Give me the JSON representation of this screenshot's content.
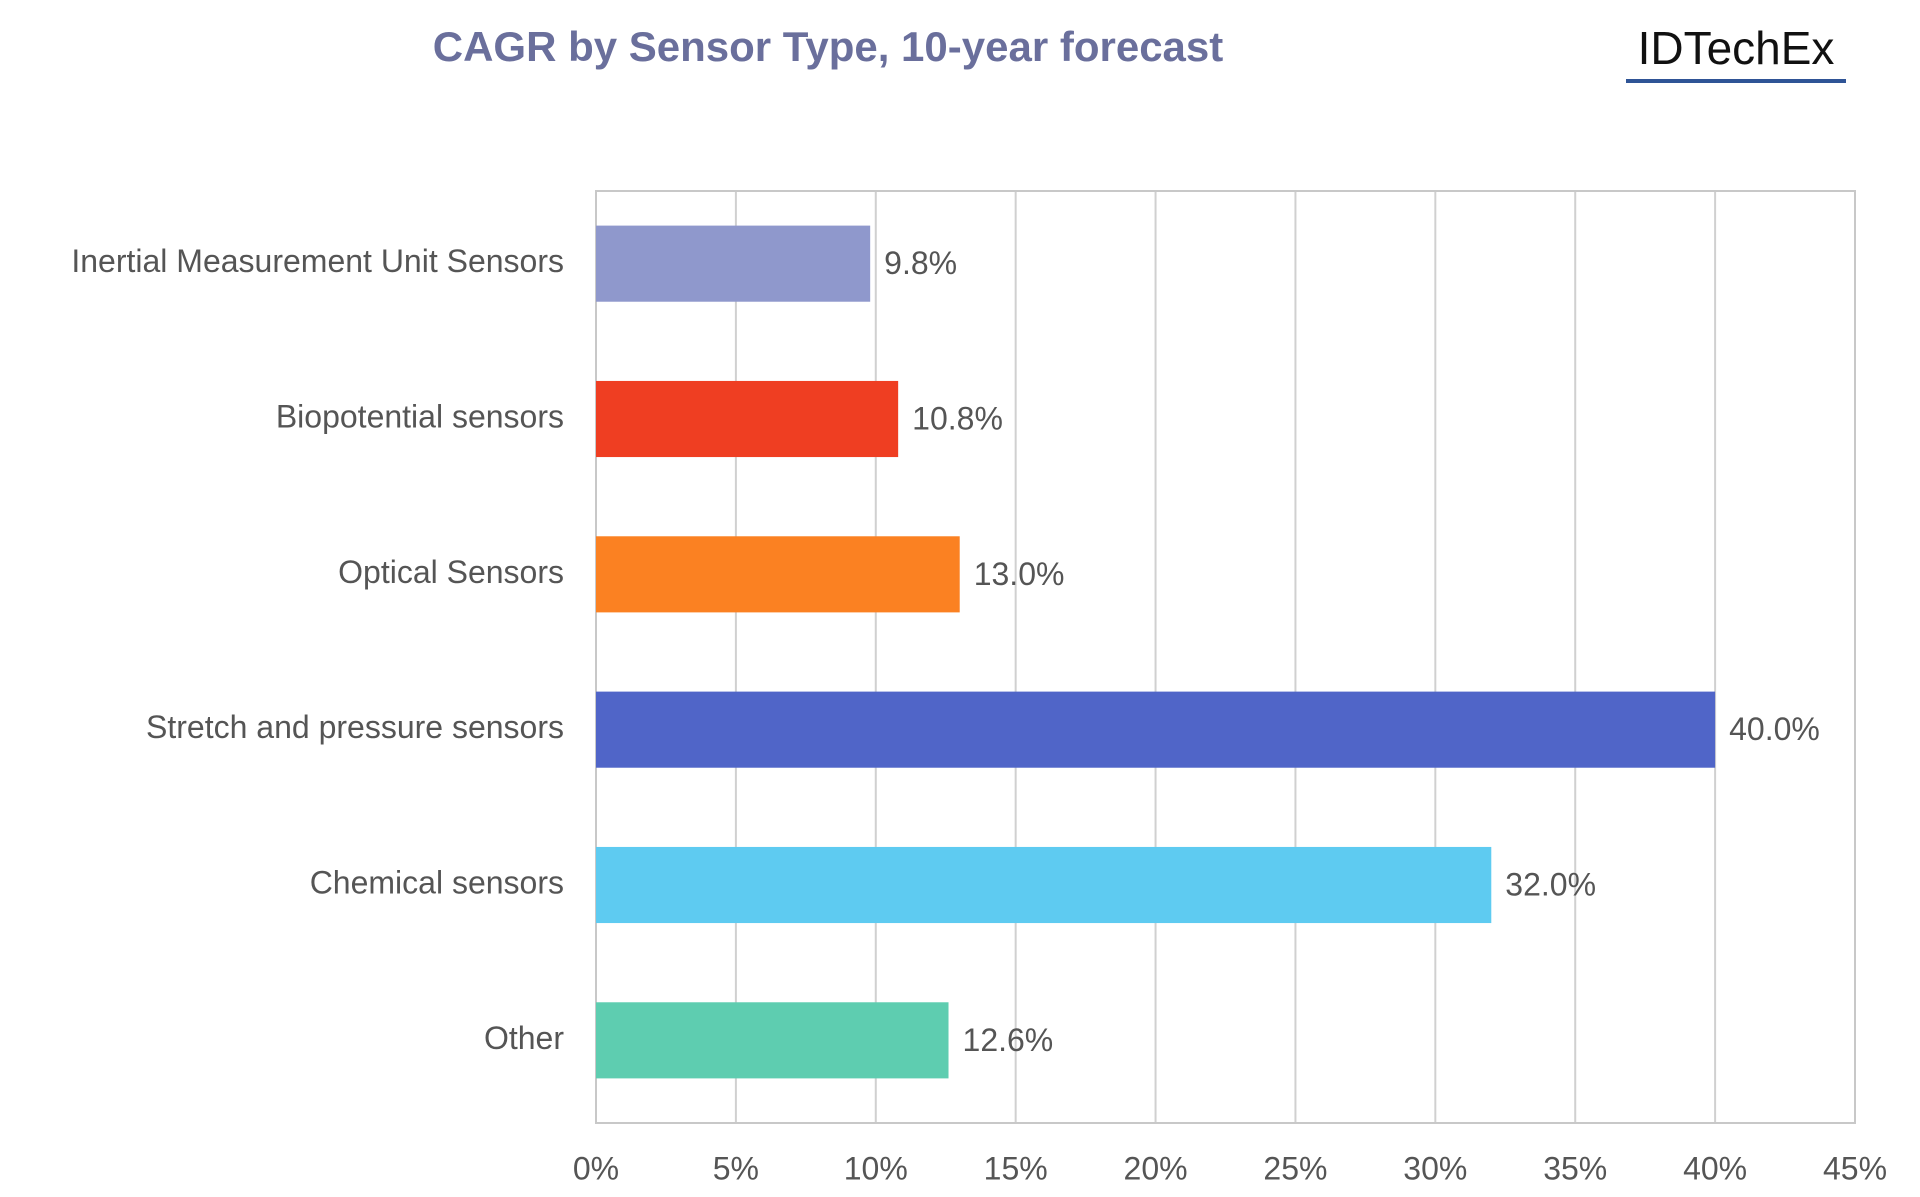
{
  "chart_data": {
    "type": "bar",
    "orientation": "horizontal",
    "title": "CAGR by Sensor Type, 10-year forecast",
    "logo": "IDTechEx",
    "categories": [
      "Inertial Measurement Unit Sensors",
      "Biopotential sensors",
      "Optical Sensors",
      "Stretch and pressure sensors",
      "Chemical sensors",
      "Other"
    ],
    "values": [
      9.8,
      10.8,
      13.0,
      40.0,
      32.0,
      12.6
    ],
    "value_labels": [
      "9.8%",
      "10.8%",
      "13.0%",
      "40.0%",
      "32.0%",
      "12.6%"
    ],
    "colors": [
      "#8f98cc",
      "#ef3e22",
      "#fb8122",
      "#5065c8",
      "#5ecbf1",
      "#5ecdb0"
    ],
    "xlim": [
      0,
      45
    ],
    "xticks": [
      {
        "value": 0,
        "label": "0%"
      },
      {
        "value": 5,
        "label": "5%"
      },
      {
        "value": 10,
        "label": "10%"
      },
      {
        "value": 15,
        "label": "15%"
      },
      {
        "value": 20,
        "label": "20%"
      },
      {
        "value": 25,
        "label": "25%"
      },
      {
        "value": 30,
        "label": "30%"
      },
      {
        "value": 35,
        "label": "35%"
      },
      {
        "value": 40,
        "label": "40%"
      },
      {
        "value": 45,
        "label": "45%"
      }
    ],
    "grid": true
  }
}
